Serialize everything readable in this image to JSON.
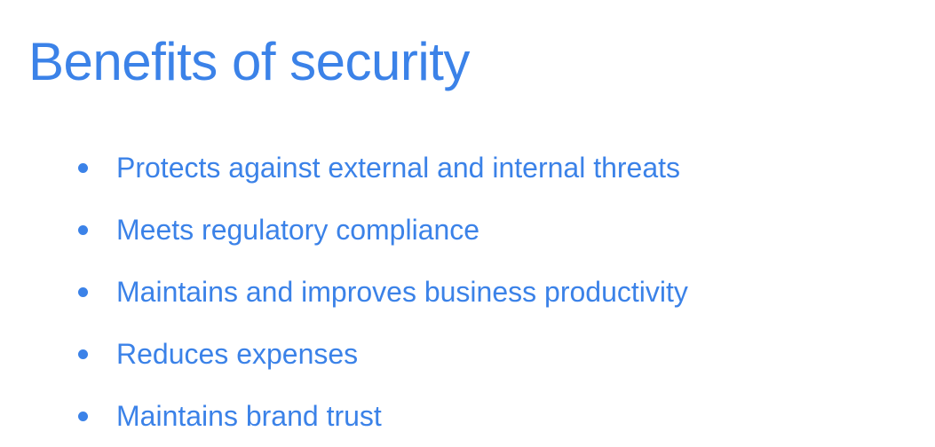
{
  "slide": {
    "title": "Benefits of security",
    "bullets": [
      "Protects against external and internal threats",
      "Meets regulatory compliance",
      "Maintains and improves business productivity",
      "Reduces expenses",
      "Maintains brand trust"
    ]
  },
  "colors": {
    "accent": "#3b82e8",
    "background": "#ffffff"
  }
}
